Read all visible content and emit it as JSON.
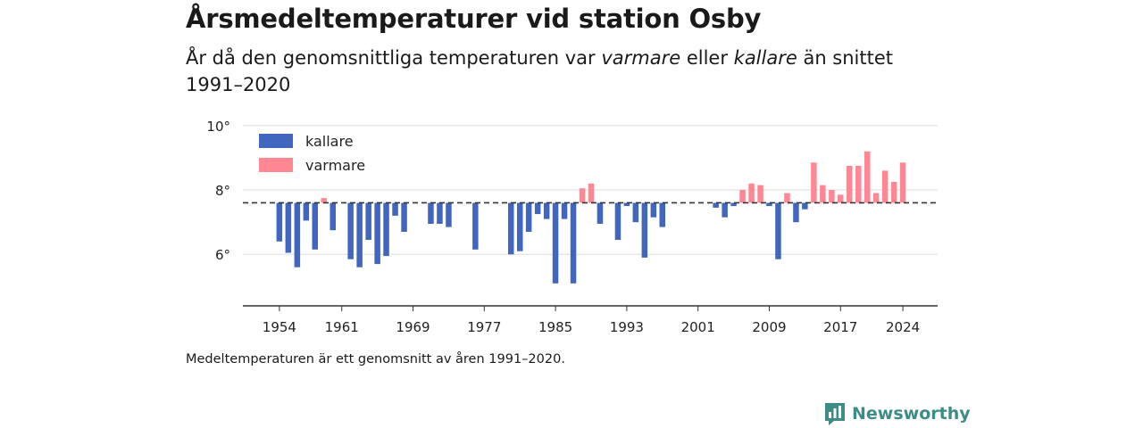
{
  "title": "Årsmedeltemperaturer vid station Osby",
  "subtitle": {
    "part1": "År då den genomsnittliga temperaturen var ",
    "em1": "varmare",
    "part2": " eller ",
    "em2": "kallare",
    "part3": " än snittet 1991–2020"
  },
  "footnote": "Medeltemperaturen är ett genomsnitt av åren 1991–2020.",
  "brand": {
    "name": "Newsworthy",
    "icon": "newsworthy-logo-icon",
    "color": "#3d8c86"
  },
  "chart_data": {
    "type": "bar",
    "baseline": 7.6,
    "ylim": [
      4.4,
      10.3
    ],
    "yticks": [
      6,
      8,
      10
    ],
    "ytick_labels": [
      "6°",
      "8°",
      "10°"
    ],
    "xticks": [
      1954,
      1961,
      1969,
      1977,
      1985,
      1993,
      2001,
      2009,
      2017,
      2024
    ],
    "xlim": [
      1949.9,
      2027.9
    ],
    "grid": true,
    "legend_position": "top-left",
    "colors": {
      "kallare": "#4066be",
      "varmare": "#ff8793",
      "baseline": "#333333",
      "grid": "#dddddd"
    },
    "legend": [
      {
        "key": "kallare",
        "label": "kallare"
      },
      {
        "key": "varmare",
        "label": "varmare"
      }
    ],
    "x": [
      1954,
      1955,
      1956,
      1957,
      1958,
      1959,
      1960,
      1962,
      1963,
      1964,
      1965,
      1966,
      1967,
      1968,
      1971,
      1972,
      1973,
      1976,
      1980,
      1981,
      1982,
      1983,
      1984,
      1985,
      1986,
      1987,
      1988,
      1989,
      1990,
      1992,
      1993,
      1994,
      1995,
      1996,
      1997,
      2003,
      2004,
      2005,
      2006,
      2007,
      2008,
      2009,
      2010,
      2011,
      2012,
      2013,
      2014,
      2015,
      2016,
      2017,
      2018,
      2019,
      2020,
      2021,
      2022,
      2023,
      2024
    ],
    "values": [
      6.4,
      6.05,
      5.6,
      7.05,
      6.15,
      7.75,
      6.75,
      5.85,
      5.6,
      6.45,
      5.7,
      5.95,
      7.2,
      6.7,
      6.95,
      6.95,
      6.85,
      6.15,
      6.0,
      6.1,
      6.7,
      7.25,
      7.1,
      5.1,
      7.1,
      5.1,
      8.05,
      8.2,
      6.95,
      6.45,
      7.5,
      7.0,
      5.9,
      7.15,
      6.85,
      7.45,
      7.15,
      7.5,
      8.0,
      8.2,
      8.15,
      7.5,
      5.85,
      7.9,
      7.0,
      7.4,
      8.85,
      8.15,
      8.0,
      7.85,
      8.75,
      8.75,
      9.2,
      7.9,
      8.6,
      8.25,
      8.85
    ]
  }
}
